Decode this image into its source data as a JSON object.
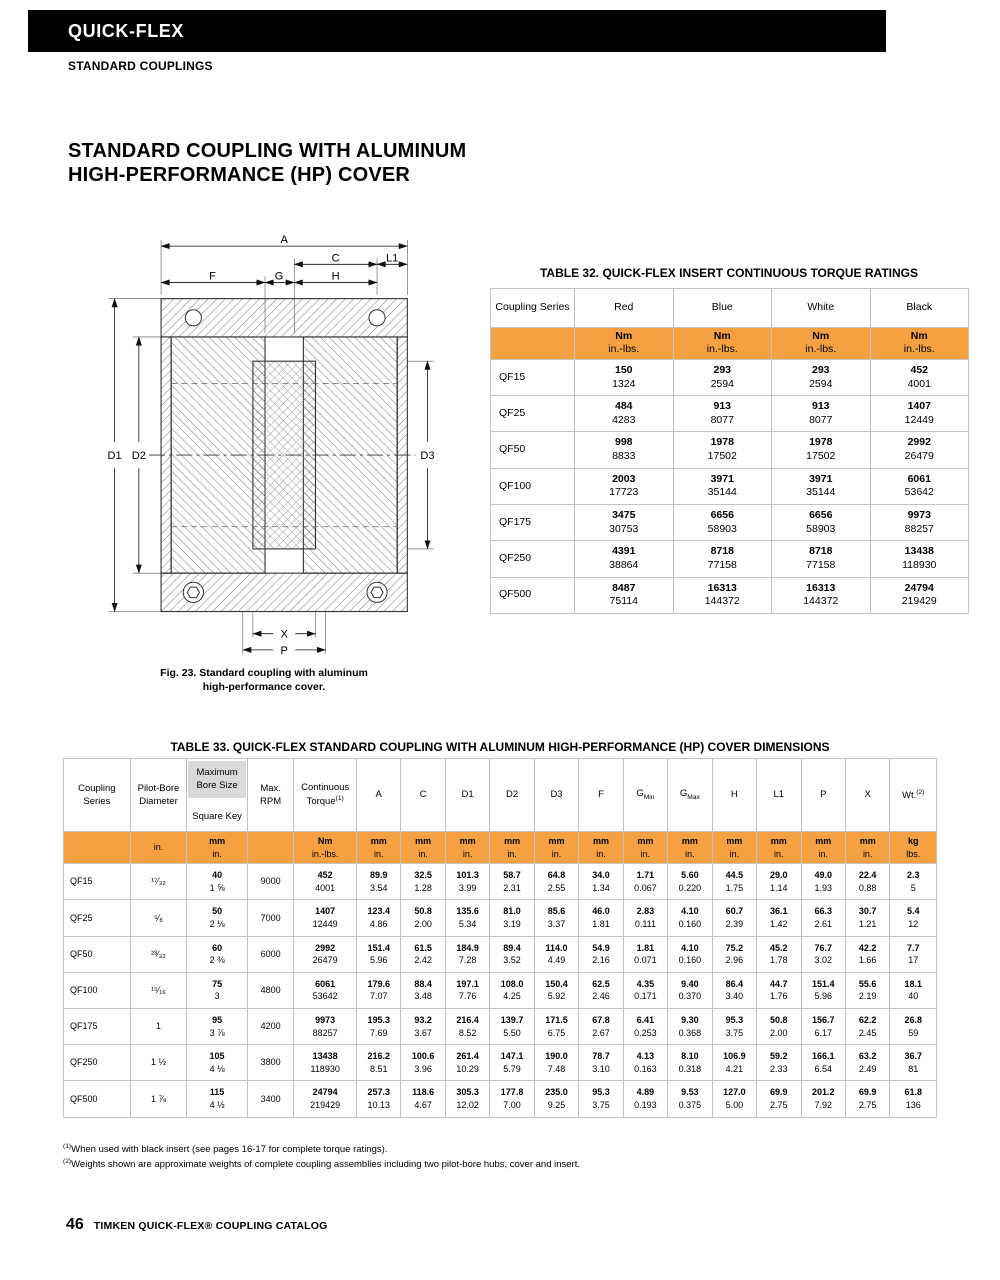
{
  "colors": {
    "accent_orange": "#F5A142",
    "gray_box": "#D9D9D9",
    "header_bar": "#000000"
  },
  "header": {
    "brand": "QUICK-FLEX",
    "subtitle": "STANDARD COUPLINGS"
  },
  "title": {
    "line1": "STANDARD COUPLING WITH ALUMINUM",
    "line2": "HIGH-PERFORMANCE (HP) COVER"
  },
  "figure": {
    "caption_line1": "Fig. 23. Standard coupling with aluminum",
    "caption_line2": "high-performance cover.",
    "dims": {
      "A": "A",
      "C": "C",
      "L1": "L1",
      "F": "F",
      "G": "G",
      "H": "H",
      "D1": "D1",
      "D2": "D2",
      "D3": "D3",
      "X": "X",
      "P": "P"
    }
  },
  "table32": {
    "title": "TABLE 32. QUICK-FLEX INSERT CONTINUOUS TORQUE RATINGS",
    "col_header": "Coupling Series",
    "colors": [
      "Red",
      "Blue",
      "White",
      "Black"
    ],
    "unit_metric": "Nm",
    "unit_imperial": "in.-lbs.",
    "rows": [
      {
        "series": "QF15",
        "values": [
          [
            "150",
            "1324"
          ],
          [
            "293",
            "2594"
          ],
          [
            "293",
            "2594"
          ],
          [
            "452",
            "4001"
          ]
        ]
      },
      {
        "series": "QF25",
        "values": [
          [
            "484",
            "4283"
          ],
          [
            "913",
            "8077"
          ],
          [
            "913",
            "8077"
          ],
          [
            "1407",
            "12449"
          ]
        ]
      },
      {
        "series": "QF50",
        "values": [
          [
            "998",
            "8833"
          ],
          [
            "1978",
            "17502"
          ],
          [
            "1978",
            "17502"
          ],
          [
            "2992",
            "26479"
          ]
        ]
      },
      {
        "series": "QF100",
        "values": [
          [
            "2003",
            "17723"
          ],
          [
            "3971",
            "35144"
          ],
          [
            "3971",
            "35144"
          ],
          [
            "6061",
            "53642"
          ]
        ]
      },
      {
        "series": "QF175",
        "values": [
          [
            "3475",
            "30753"
          ],
          [
            "6656",
            "58903"
          ],
          [
            "6656",
            "58903"
          ],
          [
            "9973",
            "88257"
          ]
        ]
      },
      {
        "series": "QF250",
        "values": [
          [
            "4391",
            "38864"
          ],
          [
            "8718",
            "77158"
          ],
          [
            "8718",
            "77158"
          ],
          [
            "13438",
            "118930"
          ]
        ]
      },
      {
        "series": "QF500",
        "values": [
          [
            "8487",
            "75114"
          ],
          [
            "16313",
            "144372"
          ],
          [
            "16313",
            "144372"
          ],
          [
            "24794",
            "219429"
          ]
        ]
      }
    ]
  },
  "table33": {
    "title": "TABLE 33. QUICK-FLEX STANDARD COUPLING WITH ALUMINUM HIGH-PERFORMANCE (HP) COVER DIMENSIONS",
    "header": {
      "series": "Coupling Series",
      "pilot": "Pilot-Bore Diameter",
      "maxbore_box": "Maximum Bore Size",
      "maxbore_sub": "Square Key",
      "rpm": "Max. RPM",
      "torque": "Continuous Torque",
      "torque_sup": "(1)",
      "dims": [
        {
          "label": "A"
        },
        {
          "label": "C"
        },
        {
          "label": "D1"
        },
        {
          "label": "D2"
        },
        {
          "label": "D3"
        },
        {
          "label": "F"
        },
        {
          "label": "G",
          "sub": "Min"
        },
        {
          "label": "G",
          "sub": "Max"
        },
        {
          "label": "H"
        },
        {
          "label": "L1"
        },
        {
          "label": "P"
        },
        {
          "label": "X"
        }
      ],
      "wt": "Wt.",
      "wt_sup": "(2)"
    },
    "units": {
      "pilot": "in.",
      "metric": "mm",
      "imperial": "in.",
      "torque_metric": "Nm",
      "torque_imperial": "in.-lbs.",
      "weight_metric": "kg",
      "weight_imperial": "lbs."
    },
    "rows": [
      {
        "series": "QF15",
        "pilot": "¹⁷⁄₃₂",
        "maxbore": [
          "40",
          "1 ⅝"
        ],
        "rpm": "9000",
        "torque": [
          "452",
          "4001"
        ],
        "dims": [
          [
            "89.9",
            "3.54"
          ],
          [
            "32.5",
            "1.28"
          ],
          [
            "101.3",
            "3.99"
          ],
          [
            "58.7",
            "2.31"
          ],
          [
            "64.8",
            "2.55"
          ],
          [
            "34.0",
            "1.34"
          ],
          [
            "1.71",
            "0.067"
          ],
          [
            "5.60",
            "0.220"
          ],
          [
            "44.5",
            "1.75"
          ],
          [
            "29.0",
            "1.14"
          ],
          [
            "49.0",
            "1.93"
          ],
          [
            "22.4",
            "0.88"
          ]
        ],
        "wt": [
          "2.3",
          "5"
        ]
      },
      {
        "series": "QF25",
        "pilot": "⁵⁄₈",
        "maxbore": [
          "50",
          "2 ⅛"
        ],
        "rpm": "7000",
        "torque": [
          "1407",
          "12449"
        ],
        "dims": [
          [
            "123.4",
            "4.86"
          ],
          [
            "50.8",
            "2.00"
          ],
          [
            "135.6",
            "5.34"
          ],
          [
            "81.0",
            "3.19"
          ],
          [
            "85.6",
            "3.37"
          ],
          [
            "46.0",
            "1.81"
          ],
          [
            "2.83",
            "0.111"
          ],
          [
            "4.10",
            "0.160"
          ],
          [
            "60.7",
            "2.39"
          ],
          [
            "36.1",
            "1.42"
          ],
          [
            "66.3",
            "2.61"
          ],
          [
            "30.7",
            "1.21"
          ]
        ],
        "wt": [
          "5.4",
          "12"
        ]
      },
      {
        "series": "QF50",
        "pilot": "²³⁄₃₂",
        "maxbore": [
          "60",
          "2 ⅜"
        ],
        "rpm": "6000",
        "torque": [
          "2992",
          "26479"
        ],
        "dims": [
          [
            "151.4",
            "5.96"
          ],
          [
            "61.5",
            "2.42"
          ],
          [
            "184.9",
            "7.28"
          ],
          [
            "89.4",
            "3.52"
          ],
          [
            "114.0",
            "4.49"
          ],
          [
            "54.9",
            "2.16"
          ],
          [
            "1.81",
            "0.071"
          ],
          [
            "4.10",
            "0.160"
          ],
          [
            "75.2",
            "2.96"
          ],
          [
            "45.2",
            "1.78"
          ],
          [
            "76.7",
            "3.02"
          ],
          [
            "42.2",
            "1.66"
          ]
        ],
        "wt": [
          "7.7",
          "17"
        ]
      },
      {
        "series": "QF100",
        "pilot": "¹⁵⁄₁₆",
        "maxbore": [
          "75",
          "3"
        ],
        "rpm": "4800",
        "torque": [
          "6061",
          "53642"
        ],
        "dims": [
          [
            "179.6",
            "7.07"
          ],
          [
            "88.4",
            "3.48"
          ],
          [
            "197.1",
            "7.76"
          ],
          [
            "108.0",
            "4.25"
          ],
          [
            "150.4",
            "5.92"
          ],
          [
            "62.5",
            "2.46"
          ],
          [
            "4.35",
            "0.171"
          ],
          [
            "9.40",
            "0.370"
          ],
          [
            "86.4",
            "3.40"
          ],
          [
            "44.7",
            "1.76"
          ],
          [
            "151.4",
            "5.96"
          ],
          [
            "55.6",
            "2.19"
          ]
        ],
        "wt": [
          "18.1",
          "40"
        ]
      },
      {
        "series": "QF175",
        "pilot": "1",
        "maxbore": [
          "95",
          "3 ⅞"
        ],
        "rpm": "4200",
        "torque": [
          "9973",
          "88257"
        ],
        "dims": [
          [
            "195.3",
            "7.69"
          ],
          [
            "93.2",
            "3.67"
          ],
          [
            "216.4",
            "8.52"
          ],
          [
            "139.7",
            "5.50"
          ],
          [
            "171.5",
            "6.75"
          ],
          [
            "67.8",
            "2.67"
          ],
          [
            "6.41",
            "0.253"
          ],
          [
            "9.30",
            "0.368"
          ],
          [
            "95.3",
            "3.75"
          ],
          [
            "50.8",
            "2.00"
          ],
          [
            "156.7",
            "6.17"
          ],
          [
            "62.2",
            "2.45"
          ]
        ],
        "wt": [
          "26.8",
          "59"
        ]
      },
      {
        "series": "QF250",
        "pilot": "1 ½",
        "maxbore": [
          "105",
          "4 ⅛"
        ],
        "rpm": "3800",
        "torque": [
          "13438",
          "118930"
        ],
        "dims": [
          [
            "216.2",
            "8.51"
          ],
          [
            "100.6",
            "3.96"
          ],
          [
            "261.4",
            "10.29"
          ],
          [
            "147.1",
            "5.79"
          ],
          [
            "190.0",
            "7.48"
          ],
          [
            "78.7",
            "3.10"
          ],
          [
            "4.13",
            "0.163"
          ],
          [
            "8.10",
            "0.318"
          ],
          [
            "106.9",
            "4.21"
          ],
          [
            "59.2",
            "2.33"
          ],
          [
            "166.1",
            "6.54"
          ],
          [
            "63.2",
            "2.49"
          ]
        ],
        "wt": [
          "36.7",
          "81"
        ]
      },
      {
        "series": "QF500",
        "pilot": "1 ⅞",
        "maxbore": [
          "115",
          "4 ½"
        ],
        "rpm": "3400",
        "torque": [
          "24794",
          "219429"
        ],
        "dims": [
          [
            "257.3",
            "10.13"
          ],
          [
            "118.6",
            "4.67"
          ],
          [
            "305.3",
            "12.02"
          ],
          [
            "177.8",
            "7.00"
          ],
          [
            "235.0",
            "9.25"
          ],
          [
            "95.3",
            "3.75"
          ],
          [
            "4.89",
            "0.193"
          ],
          [
            "9.53",
            "0.375"
          ],
          [
            "127.0",
            "5.00"
          ],
          [
            "69.9",
            "2.75"
          ],
          [
            "201.2",
            "7.92"
          ],
          [
            "69.9",
            "2.75"
          ]
        ],
        "wt": [
          "61.8",
          "136"
        ]
      }
    ]
  },
  "footnotes": [
    {
      "sup": "(1)",
      "text": "When used with black insert (see pages 16-17 for complete torque ratings)."
    },
    {
      "sup": "(2)",
      "text": "Weights shown are approximate weights of complete coupling assemblies including two pilot-bore hubs, cover and insert."
    }
  ],
  "footer": {
    "page_number": "46",
    "text": "TIMKEN QUICK-FLEX® COUPLING CATALOG"
  }
}
